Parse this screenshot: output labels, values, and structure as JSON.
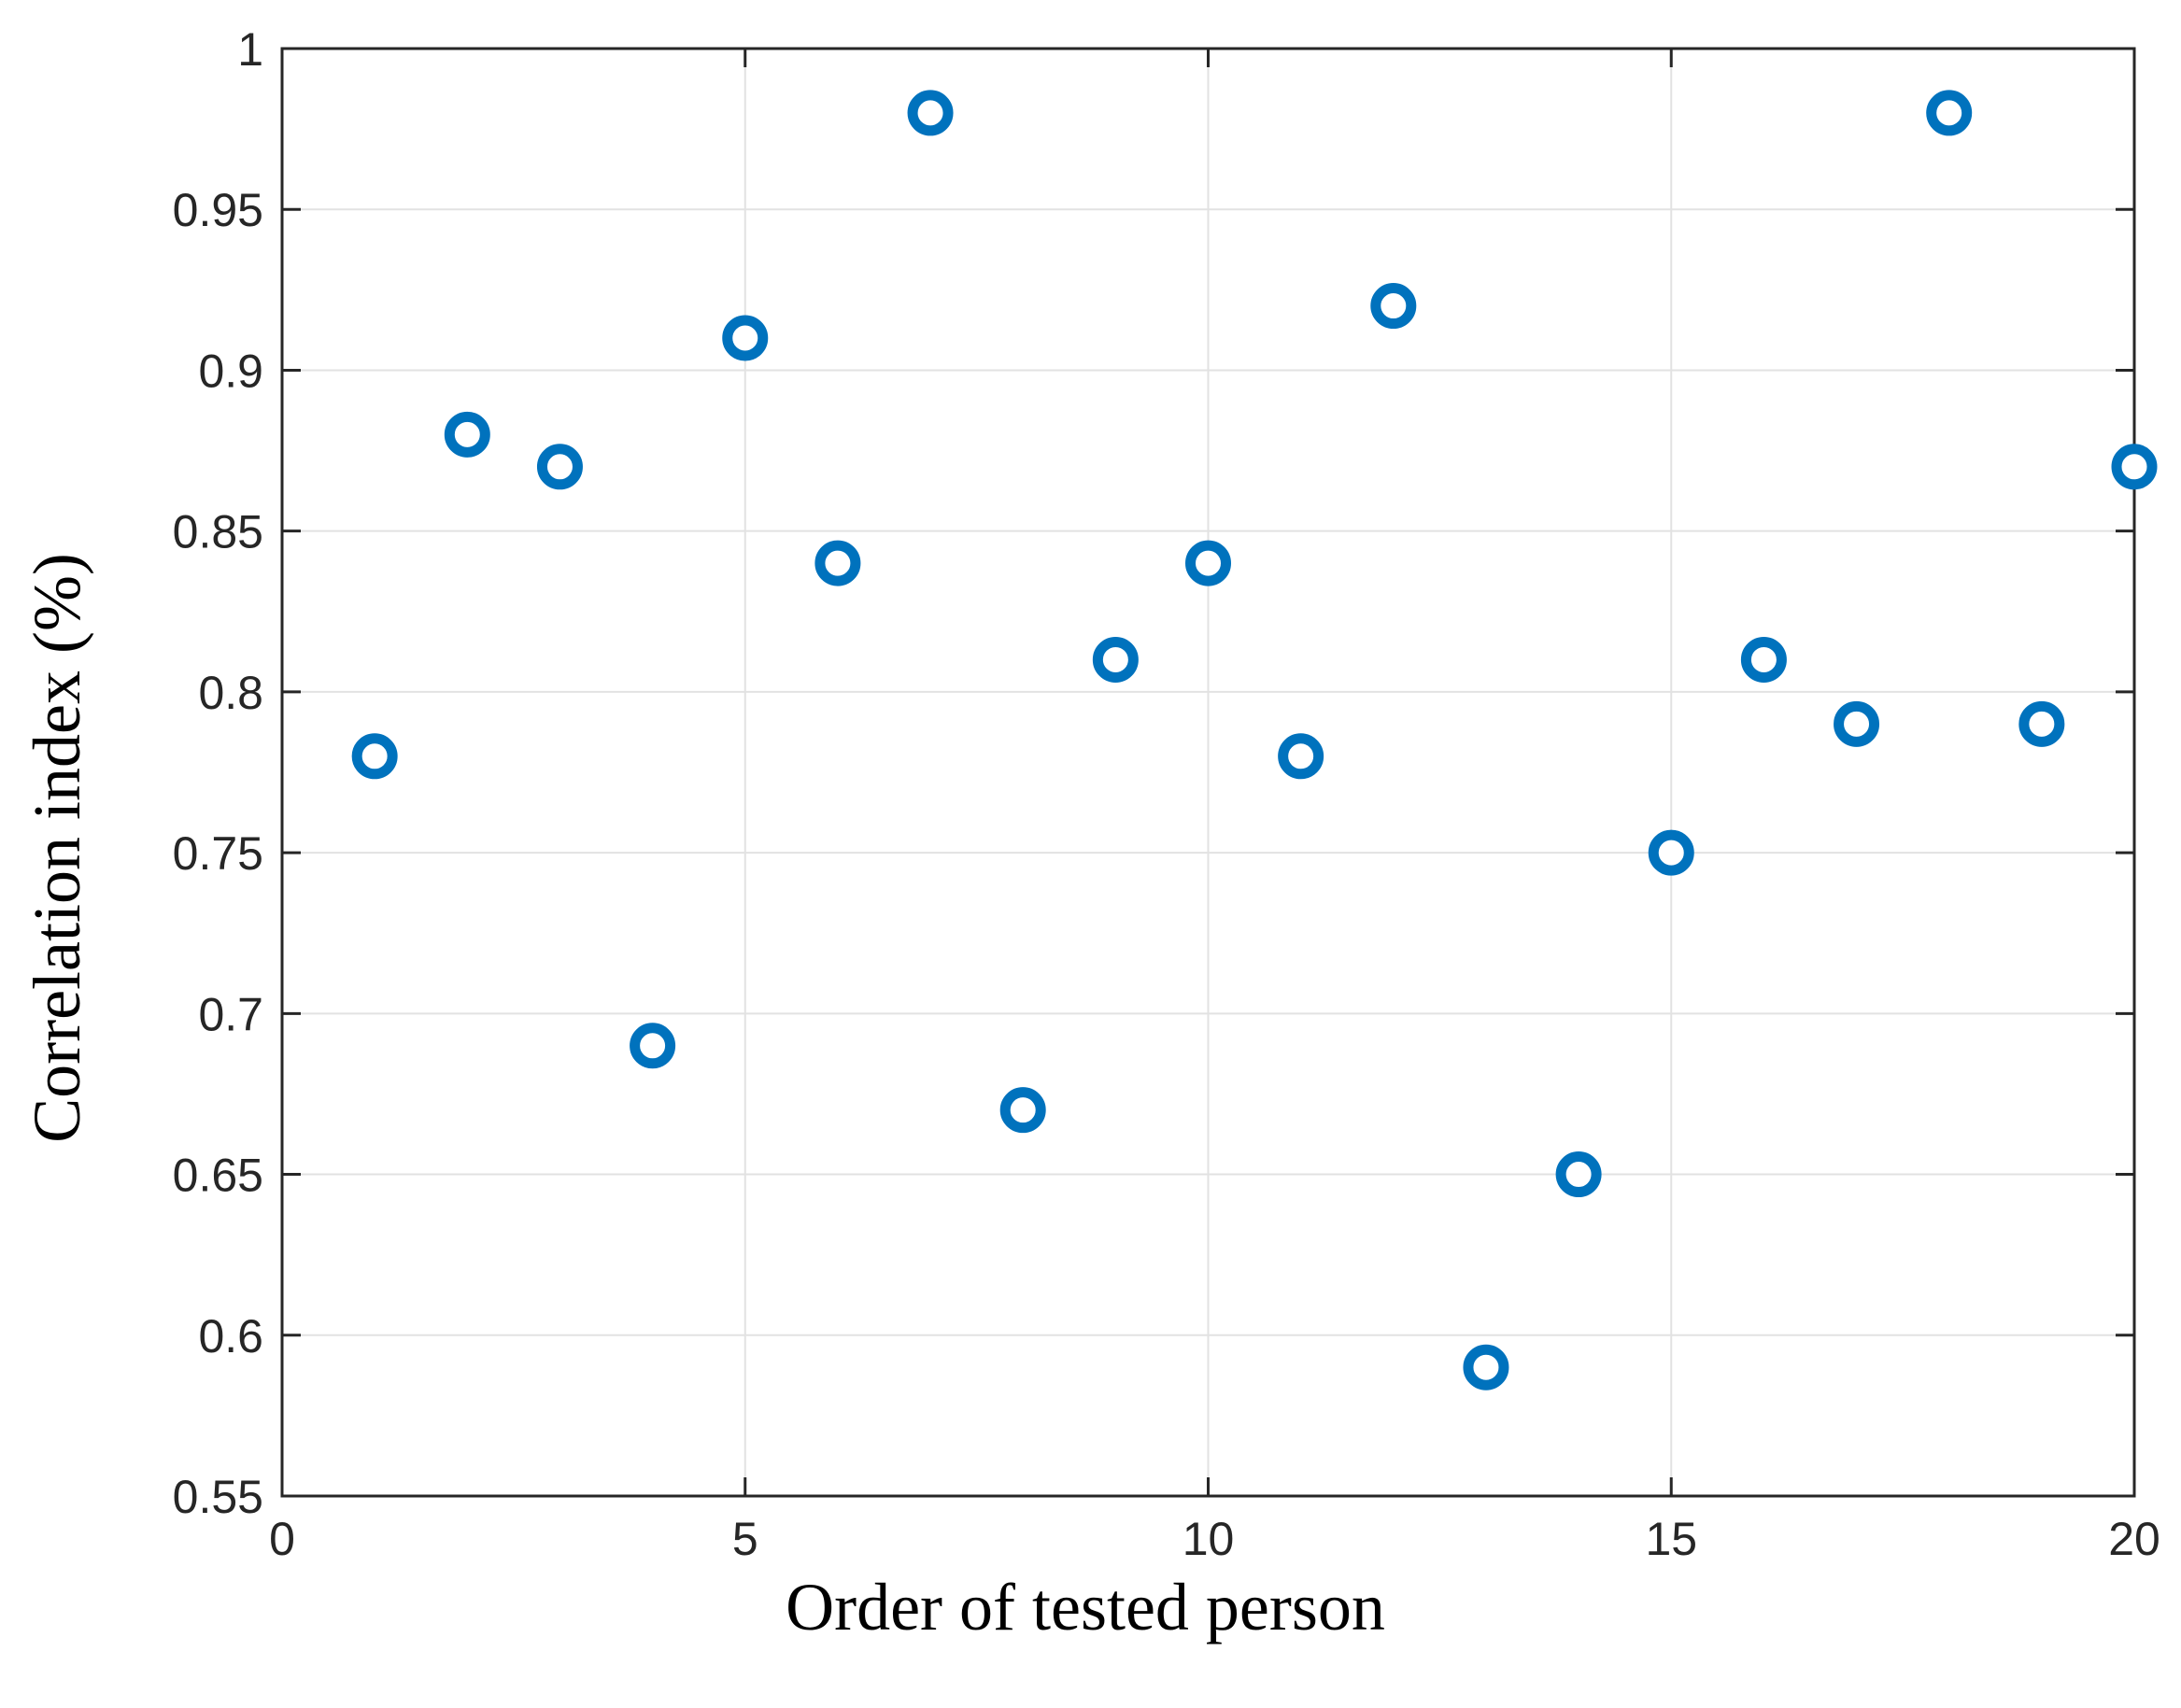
{
  "chart_data": {
    "type": "scatter",
    "title": "",
    "xlabel": "Order of tested person",
    "ylabel": "Correlation index (%)",
    "xlim": [
      0,
      20
    ],
    "ylim": [
      0.55,
      1
    ],
    "xticks": [
      0,
      5,
      10,
      15,
      20
    ],
    "xtick_labels": [
      "0",
      "5",
      "10",
      "15",
      "20"
    ],
    "yticks": [
      0.55,
      0.6,
      0.65,
      0.7,
      0.75,
      0.8,
      0.85,
      0.9,
      0.95,
      1
    ],
    "ytick_labels": [
      "0.55",
      "0.6",
      "0.65",
      "0.7",
      "0.75",
      "0.8",
      "0.85",
      "0.9",
      "0.95",
      "1"
    ],
    "grid": true,
    "marker": "open-circle",
    "color": "#0072BD",
    "series": [
      {
        "name": "Correlation index",
        "x": [
          1,
          2,
          3,
          4,
          5,
          6,
          7,
          8,
          9,
          10,
          11,
          12,
          13,
          14,
          15,
          16,
          17,
          18,
          19,
          20
        ],
        "y": [
          0.78,
          0.88,
          0.87,
          0.69,
          0.91,
          0.84,
          0.98,
          0.67,
          0.81,
          0.84,
          0.78,
          0.92,
          0.59,
          0.65,
          0.75,
          0.81,
          0.79,
          0.98,
          0.79,
          0.87
        ]
      }
    ]
  }
}
